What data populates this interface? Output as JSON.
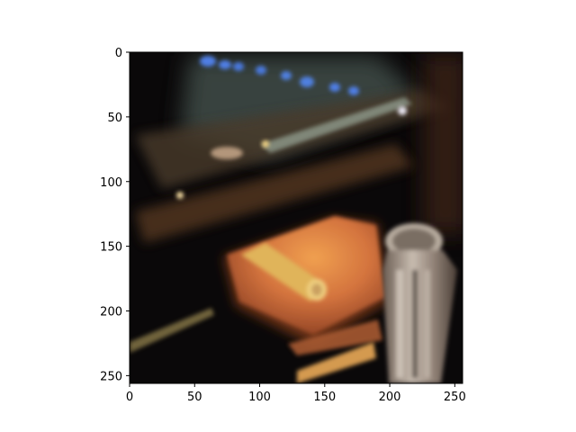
{
  "chart_data": {
    "type": "heatmap",
    "image": "blurry photo of a dark car interior with an orange wallet, a yellow cylindrical object and a silver cup-shaped object",
    "xlim": [
      0,
      256
    ],
    "ylim": [
      256,
      0
    ],
    "y_inverted": true,
    "x_ticks": [
      0,
      50,
      100,
      150,
      200,
      250
    ],
    "y_ticks": [
      0,
      50,
      100,
      150,
      200,
      250
    ],
    "grid": false,
    "colors": {
      "background": "#08070a",
      "dash_glow": "#4a5a50",
      "blue_lights": "#4f7fe6",
      "wallet": "#c8673a",
      "wallet_highlight": "#e89a4c",
      "yellow_tube": "#e3b85a",
      "silver_object": "#b0a59a",
      "warm_bar": "#a86a3a"
    }
  }
}
